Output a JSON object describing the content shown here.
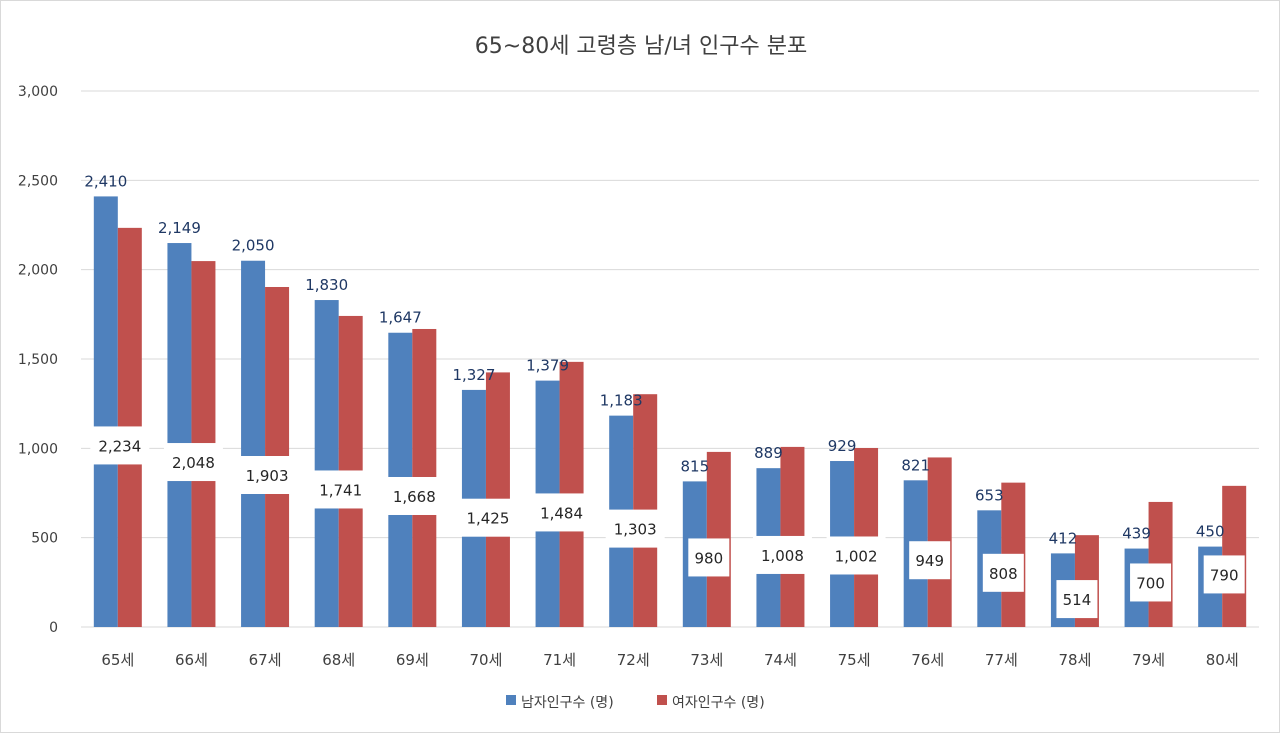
{
  "chart_data": {
    "type": "bar",
    "title": "65~80세 고령층 남/녀 인구수 분포",
    "categories": [
      "65세",
      "66세",
      "67세",
      "68세",
      "69세",
      "70세",
      "71세",
      "72세",
      "73세",
      "74세",
      "75세",
      "76세",
      "77세",
      "78세",
      "79세",
      "80세"
    ],
    "series": [
      {
        "name": "남자인구수 (명)",
        "color": "#4f81bd",
        "values": [
          2410,
          2149,
          2050,
          1830,
          1647,
          1327,
          1379,
          1183,
          815,
          889,
          929,
          821,
          653,
          412,
          439,
          450
        ],
        "labels": [
          "2,410",
          "2,149",
          "2,050",
          "1,830",
          "1,647",
          "1,327",
          "1,379",
          "1,183",
          "815",
          "889",
          "929",
          "821",
          "653",
          "412",
          "439",
          "450"
        ]
      },
      {
        "name": "여자인구수 (명)",
        "color": "#c0504d",
        "values": [
          2234,
          2048,
          1903,
          1741,
          1668,
          1425,
          1484,
          1303,
          980,
          1008,
          1002,
          949,
          808,
          514,
          700,
          790
        ],
        "labels": [
          "2,234",
          "2,048",
          "1,903",
          "1,741",
          "1,668",
          "1,425",
          "1,484",
          "1,303",
          "980",
          "1,008",
          "1,002",
          "949",
          "808",
          "514",
          "700",
          "790"
        ]
      }
    ],
    "yticks": [
      "0",
      "500",
      "1,000",
      "1,500",
      "2,000",
      "2,500",
      "3,000"
    ],
    "ylim": [
      0,
      3000
    ],
    "grid": true,
    "legend_position": "bottom"
  }
}
